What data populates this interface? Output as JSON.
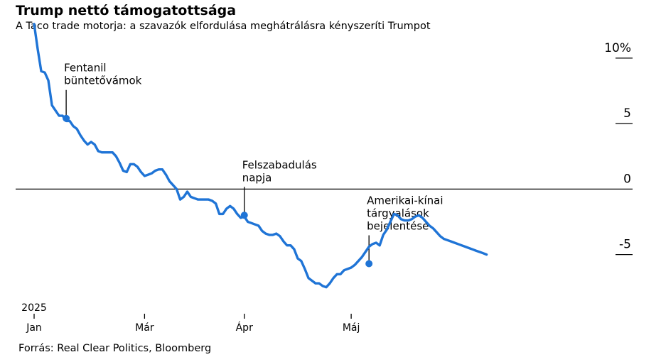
{
  "header": {
    "title": "Trump nettó támogatottsága",
    "subtitle": "A Taco trade motorja: a szavazók elfordulása meghátrálásra kényszeríti Trumpot"
  },
  "footer": {
    "source": "Forrás: Real Clear Politics, Bloomberg"
  },
  "colors": {
    "line": "#1f74d6",
    "axis": "#000000",
    "text": "#000000"
  },
  "chart_data": {
    "type": "line",
    "title": "Trump nettó támogatottsága",
    "subtitle": "A Taco trade motorja: a szavazók elfordulása meghátrálásra kényszeríti Trumpot",
    "x_unit": "days since 2025-01-01",
    "ylim": [
      -8.6,
      12
    ],
    "xlim": [
      0,
      161
    ],
    "y_ticks": [
      {
        "value": 10,
        "label": "10%"
      },
      {
        "value": 5,
        "label": "5"
      },
      {
        "value": 0,
        "label": "0"
      },
      {
        "value": -5,
        "label": "-5"
      }
    ],
    "x_ticks": [
      {
        "value": 0,
        "label": "Jan",
        "year": "2025"
      },
      {
        "value": 31,
        "label": "Már"
      },
      {
        "value": 59,
        "label": "Ápr"
      },
      {
        "value": 89,
        "label": "Máj"
      }
    ],
    "grid": false,
    "legend": "none",
    "series": [
      {
        "name": "",
        "x": [
          0,
          1,
          2,
          3,
          4,
          5,
          6,
          7,
          8,
          9,
          10,
          11,
          12,
          13,
          14,
          15,
          16,
          17,
          18,
          19,
          20,
          21,
          22,
          23,
          24,
          25,
          26,
          27,
          28,
          29,
          30,
          31,
          32,
          33,
          34,
          35,
          36,
          37,
          38,
          39,
          40,
          41,
          42,
          43,
          44,
          45,
          46,
          47,
          48,
          49,
          50,
          51,
          52,
          53,
          54,
          55,
          56,
          57,
          58,
          59,
          60,
          61,
          62,
          63,
          64,
          65,
          66,
          67,
          68,
          69,
          70,
          71,
          72,
          73,
          74,
          75,
          76,
          77,
          78,
          79,
          80,
          81,
          82,
          83,
          84,
          85,
          86,
          87,
          88,
          89,
          90,
          91,
          92,
          93,
          94,
          95,
          96,
          97,
          98,
          99,
          100,
          101,
          102,
          103,
          104,
          105,
          106,
          107,
          108,
          109,
          110,
          111,
          112,
          113,
          114,
          115,
          116,
          117,
          118,
          119,
          120,
          121,
          122,
          123,
          124,
          125,
          126,
          127
        ],
        "values": [
          12.6,
          10.7,
          9.0,
          8.9,
          8.3,
          6.4,
          6.0,
          5.6,
          5.6,
          5.2,
          5.2,
          4.8,
          4.6,
          4.1,
          3.7,
          3.4,
          3.6,
          3.4,
          2.9,
          2.8,
          2.8,
          2.8,
          2.8,
          2.5,
          2.0,
          1.4,
          1.3,
          1.9,
          1.9,
          1.7,
          1.3,
          1.0,
          1.1,
          1.2,
          1.4,
          1.5,
          1.5,
          1.1,
          0.6,
          0.3,
          0.0,
          -0.8,
          -0.6,
          -0.2,
          -0.6,
          -0.7,
          -0.8,
          -0.8,
          -0.8,
          -0.8,
          -0.9,
          -1.1,
          -1.9,
          -1.9,
          -1.5,
          -1.3,
          -1.5,
          -1.9,
          -2.2,
          -2.1,
          -2.5,
          -2.6,
          -2.7,
          -2.8,
          -3.2,
          -3.4,
          -3.5,
          -3.5,
          -3.4,
          -3.6,
          -4.0,
          -4.3,
          -4.3,
          -4.6,
          -5.3,
          -5.5,
          -6.1,
          -6.8,
          -7.0,
          -7.2,
          -7.2,
          -7.4,
          -7.5,
          -7.2,
          -6.8,
          -6.5,
          -6.5,
          -6.2,
          -6.1,
          -6.0,
          -5.8,
          -5.5,
          -5.2,
          -4.8,
          -4.4,
          -4.2,
          -4.1,
          -4.3,
          -3.5,
          -3.1,
          -2.5,
          -1.9,
          -2.0,
          -2.3,
          -2.4,
          -2.4,
          -2.3,
          -2.1,
          -2.0,
          -2.2,
          -2.5,
          -2.8,
          -3.0,
          -3.3,
          -3.6,
          -3.8,
          -3.9,
          -4.0,
          -4.1,
          -4.2,
          -4.3,
          -4.4,
          -4.5,
          -4.6,
          -4.7,
          -4.8,
          -4.9,
          -5.0
        ]
      }
    ],
    "annotations": [
      {
        "x": 9,
        "y": 5.4,
        "lines": [
          "Fentanil",
          "büntetővámok"
        ],
        "direction": "up"
      },
      {
        "x": 59,
        "y": -2.0,
        "lines": [
          "Felszabadulás",
          "napja"
        ],
        "direction": "up"
      },
      {
        "x": 94,
        "y": -5.7,
        "lines": [
          "Amerikai-kínai",
          "tárgyalások",
          "bejelentése"
        ],
        "direction": "up"
      }
    ]
  }
}
